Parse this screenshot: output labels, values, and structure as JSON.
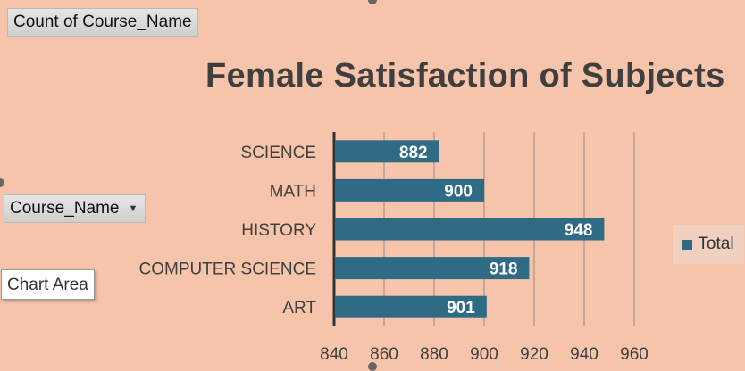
{
  "pivot_fields": {
    "value_field": "Count of Course_Name",
    "row_field": "Course_Name"
  },
  "tooltip": "Chart Area",
  "colors": {
    "background": "#f6c4aa",
    "bar": "#306b86",
    "axis_text": "#404040",
    "gridline": "#b79d90"
  },
  "chart_data": {
    "type": "bar",
    "orientation": "horizontal",
    "title": "Female Satisfaction of Subjects",
    "categories": [
      "SCIENCE",
      "MATH",
      "HISTORY",
      "COMPUTER SCIENCE",
      "ART"
    ],
    "series": [
      {
        "name": "Total",
        "values": [
          882,
          900,
          948,
          918,
          901
        ]
      }
    ],
    "xlim": [
      840,
      960
    ],
    "xticks": [
      840,
      860,
      880,
      900,
      920,
      940,
      960
    ],
    "grid": true,
    "data_labels": true,
    "legend_position": "right"
  }
}
